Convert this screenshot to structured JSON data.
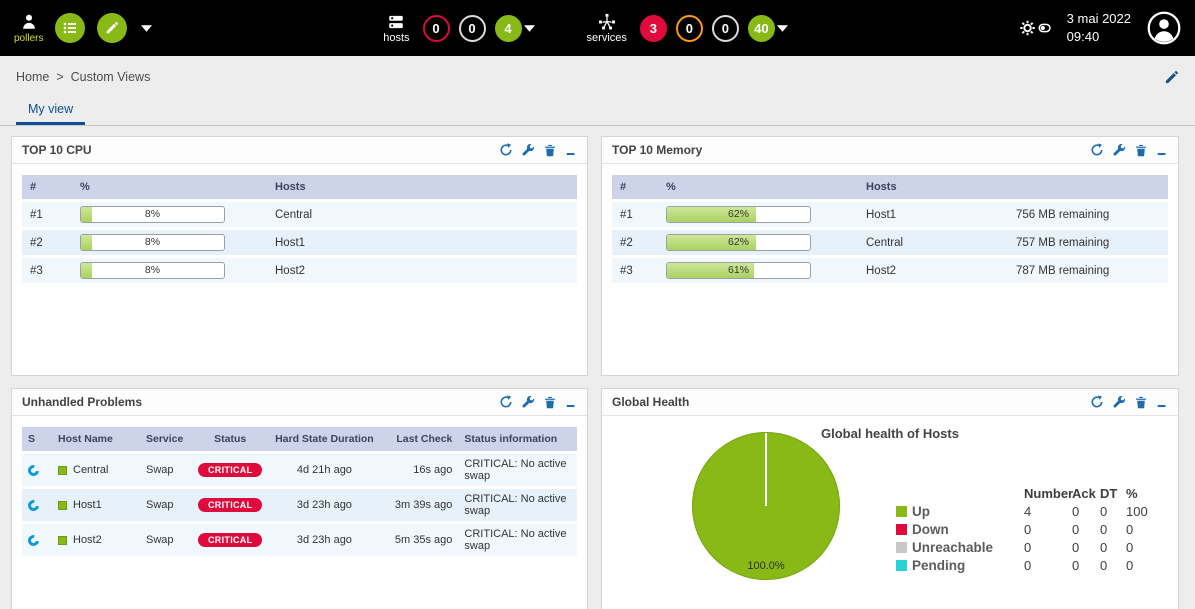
{
  "topbar": {
    "pollers_label": "pollers",
    "hosts": {
      "label": "hosts",
      "down": "0",
      "unreachable": "0",
      "up": "4"
    },
    "services": {
      "label": "services",
      "critical": "3",
      "warning": "0",
      "unknown": "0",
      "ok": "40"
    },
    "date": "3 mai 2022",
    "time": "09:40"
  },
  "breadcrumb": {
    "home": "Home",
    "sep": ">",
    "current": "Custom Views"
  },
  "tabs": {
    "my_view": "My view"
  },
  "colors": {
    "green": "#88b917",
    "red": "#e00b3d",
    "orange": "#ff9913",
    "blue": "#1e6cae"
  },
  "panels": {
    "top10cpu": {
      "title": "TOP 10 CPU",
      "columns": {
        "rank": "#",
        "percent": "%",
        "hosts": "Hosts"
      },
      "rows": [
        {
          "rank": "#1",
          "percent": "8%",
          "value": 8,
          "host": "Central"
        },
        {
          "rank": "#2",
          "percent": "8%",
          "value": 8,
          "host": "Host1"
        },
        {
          "rank": "#3",
          "percent": "8%",
          "value": 8,
          "host": "Host2"
        }
      ]
    },
    "top10memory": {
      "title": "TOP 10 Memory",
      "columns": {
        "rank": "#",
        "percent": "%",
        "hosts": "Hosts"
      },
      "rows": [
        {
          "rank": "#1",
          "percent": "62%",
          "value": 62,
          "host": "Host1",
          "remaining": "756 MB remaining"
        },
        {
          "rank": "#2",
          "percent": "62%",
          "value": 62,
          "host": "Central",
          "remaining": "757 MB remaining"
        },
        {
          "rank": "#3",
          "percent": "61%",
          "value": 61,
          "host": "Host2",
          "remaining": "787 MB remaining"
        }
      ]
    },
    "unhandled": {
      "title": "Unhandled Problems",
      "columns": {
        "s": "S",
        "host": "Host Name",
        "service": "Service",
        "status": "Status",
        "duration": "Hard State Duration",
        "last_check": "Last Check",
        "info": "Status information"
      },
      "rows": [
        {
          "host": "Central",
          "service": "Swap",
          "status": "CRITICAL",
          "duration": "4d 21h ago",
          "last_check": "16s ago",
          "info": "CRITICAL: No active swap"
        },
        {
          "host": "Host1",
          "service": "Swap",
          "status": "CRITICAL",
          "duration": "3d 23h ago",
          "last_check": "3m 39s ago",
          "info": "CRITICAL: No active swap"
        },
        {
          "host": "Host2",
          "service": "Swap",
          "status": "CRITICAL",
          "duration": "3d 23h ago",
          "last_check": "5m 35s ago",
          "info": "CRITICAL: No active swap"
        }
      ]
    },
    "global_health": {
      "title": "Global Health",
      "chart_title": "Global health of Hosts",
      "pie_label": "100.0%",
      "chart_data": {
        "type": "pie",
        "title": "Global health of Hosts",
        "labels": [
          "Up",
          "Down",
          "Unreachable",
          "Pending"
        ],
        "values": [
          100,
          0,
          0,
          0
        ],
        "colors": [
          "#88b917",
          "#e00b3d",
          "#c7c8ca",
          "#2ad1d4"
        ],
        "center_label": "100.0%"
      },
      "legend_headers": {
        "number": "Number",
        "ack": "Ack",
        "dt": "DT",
        "pct": "%"
      },
      "legend": [
        {
          "label": "Up",
          "color": "#88b917",
          "number": 4,
          "ack": 0,
          "dt": 0,
          "pct": 100
        },
        {
          "label": "Down",
          "color": "#e00b3d",
          "number": 0,
          "ack": 0,
          "dt": 0,
          "pct": 0
        },
        {
          "label": "Unreachable",
          "color": "#c7c8ca",
          "number": 0,
          "ack": 0,
          "dt": 0,
          "pct": 0
        },
        {
          "label": "Pending",
          "color": "#2ad1d4",
          "number": 0,
          "ack": 0,
          "dt": 0,
          "pct": 0
        }
      ]
    }
  }
}
